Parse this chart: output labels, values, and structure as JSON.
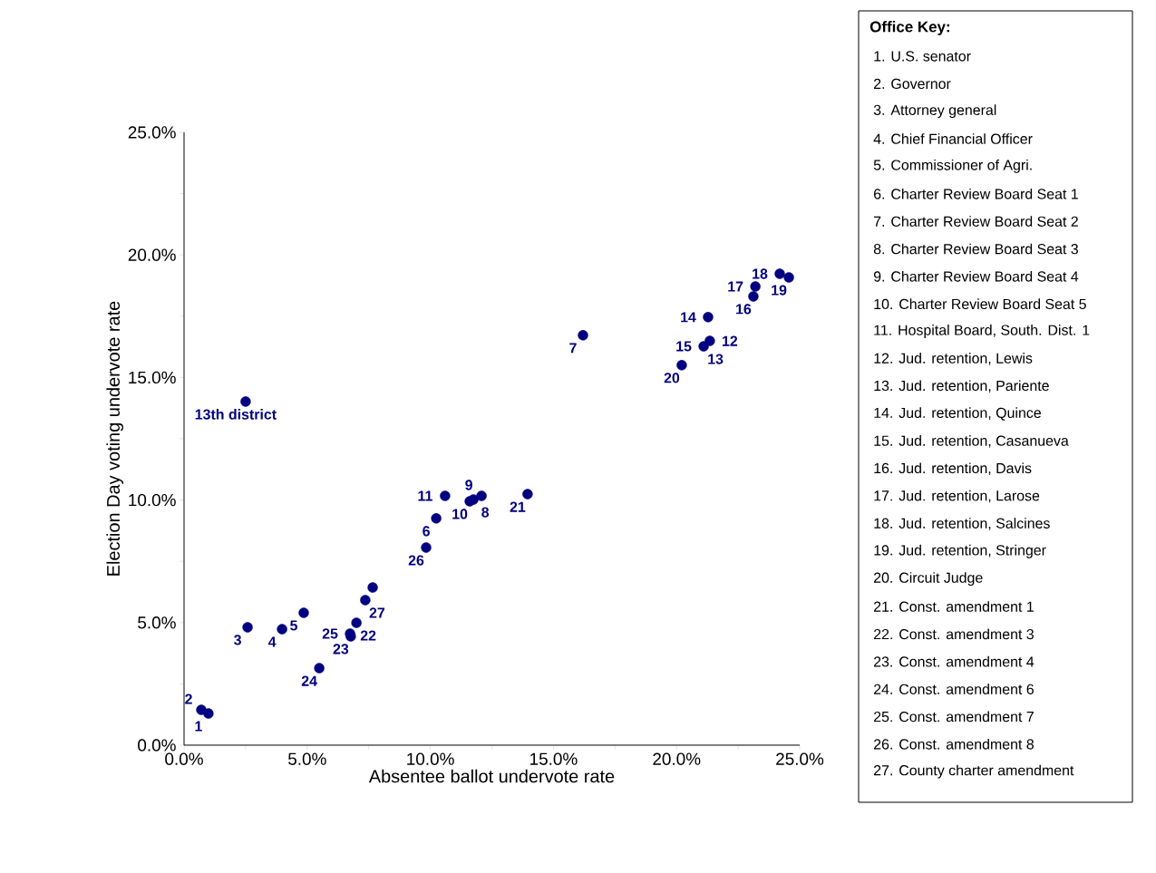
{
  "chart_data": {
    "type": "scatter",
    "xlabel": "Absentee ballot undervote rate",
    "ylabel": "Election Day voting undervote rate",
    "x": [
      0.99,
      0.7,
      2.58,
      3.98,
      4.86,
      5.49,
      6.74,
      6.77,
      7.0,
      7.36,
      7.66,
      9.83,
      10.24,
      10.6,
      11.6,
      11.75,
      12.08,
      13.95,
      16.2,
      20.21,
      21.1,
      21.35,
      21.28,
      23.12,
      23.2,
      24.19,
      24.56,
      2.5
    ],
    "values": [
      1.29,
      1.44,
      4.81,
      4.73,
      5.4,
      3.14,
      4.55,
      4.44,
      4.99,
      5.92,
      6.43,
      8.06,
      9.25,
      10.17,
      9.95,
      10.02,
      10.17,
      10.24,
      16.72,
      15.5,
      16.27,
      16.49,
      17.46,
      18.31,
      18.71,
      19.23,
      19.08,
      14.02
    ],
    "color": "#000080",
    "marker": "circle",
    "xlim": [
      0,
      25
    ],
    "ylim": [
      0,
      25
    ],
    "xticks": [
      {
        "value": 0,
        "label": "0.0%"
      },
      {
        "value": 2.5,
        "label": null
      },
      {
        "value": 5,
        "label": "5.0%"
      },
      {
        "value": 7.5,
        "label": null
      },
      {
        "value": 10,
        "label": "10.0%"
      },
      {
        "value": 12.5,
        "label": null
      },
      {
        "value": 15,
        "label": "15.0%"
      },
      {
        "value": 17.5,
        "label": null
      },
      {
        "value": 20,
        "label": "20.0%"
      },
      {
        "value": 22.5,
        "label": null
      },
      {
        "value": 25,
        "label": "25.0%"
      }
    ],
    "yticks": [
      {
        "value": 0,
        "label": "0.0%"
      },
      {
        "value": 2.5,
        "label": null
      },
      {
        "value": 5,
        "label": "5.0%"
      },
      {
        "value": 7.5,
        "label": null
      },
      {
        "value": 10,
        "label": "10.0%"
      },
      {
        "value": 12.5,
        "label": null
      },
      {
        "value": 15,
        "label": "15.0%"
      },
      {
        "value": 17.5,
        "label": null
      },
      {
        "value": 20,
        "label": "20.0%"
      },
      {
        "value": 22.5,
        "label": null
      },
      {
        "value": 25,
        "label": "25.0%"
      }
    ],
    "annotations": [
      {
        "text": "1",
        "x": 0.99,
        "y": 1.29
      },
      {
        "text": "2",
        "x": 0.7,
        "y": 1.44
      },
      {
        "text": "3",
        "x": 2.58,
        "y": 4.81
      },
      {
        "text": "4",
        "x": 3.98,
        "y": 4.73
      },
      {
        "text": "5",
        "x": 4.86,
        "y": 5.4
      },
      {
        "text": "24",
        "x": 5.49,
        "y": 3.14
      },
      {
        "text": "25",
        "x": 6.74,
        "y": 4.55
      },
      {
        "text": "23",
        "x": 6.77,
        "y": 4.44
      },
      {
        "text": "22",
        "x": 7.0,
        "y": 4.99
      },
      {
        "text": "27",
        "x": 7.36,
        "y": 5.92
      },
      {
        "text": "26",
        "x": 9.83,
        "y": 8.06
      },
      {
        "text": "6",
        "x": 10.24,
        "y": 9.25
      },
      {
        "text": "11",
        "x": 10.6,
        "y": 10.17
      },
      {
        "text": "10",
        "x": 11.6,
        "y": 9.95
      },
      {
        "text": "8",
        "x": 11.75,
        "y": 10.02
      },
      {
        "text": "9",
        "x": 12.08,
        "y": 10.17
      },
      {
        "text": "21",
        "x": 13.95,
        "y": 10.24
      },
      {
        "text": "7",
        "x": 16.2,
        "y": 16.72
      },
      {
        "text": "20",
        "x": 20.21,
        "y": 15.5
      },
      {
        "text": "13",
        "x": 21.1,
        "y": 16.27
      },
      {
        "text": "15",
        "x": 21.1,
        "y": 16.27
      },
      {
        "text": "12",
        "x": 21.35,
        "y": 16.49
      },
      {
        "text": "14",
        "x": 21.28,
        "y": 17.46
      },
      {
        "text": "16",
        "x": 23.12,
        "y": 18.31
      },
      {
        "text": "17",
        "x": 23.2,
        "y": 18.71
      },
      {
        "text": "18",
        "x": 24.19,
        "y": 19.23
      },
      {
        "text": "19",
        "x": 24.56,
        "y": 19.08
      },
      {
        "text": "13th district",
        "x": 2.5,
        "y": 14.02
      },
      "Office Key:",
      "1.  U.S. senator",
      "2.  Governor",
      "3.  Attorney general",
      "4.  Chief Financial Officer",
      "5.  Commissioner of Agri.",
      "6.  Charter Review Board Seat 1",
      "7.  Charter Review Board Seat 2",
      "8.  Charter Review Board Seat 3",
      "9.  Charter Review Board Seat 4",
      "10. Charter Review Board Seat 5",
      "11. Hospital Board, South. Dist. 1",
      "12. Jud. retention, Lewis",
      "13. Jud. retention, Pariente",
      "14. Jud. retention, Quince",
      "15. Jud. retention, Casanueva",
      "16. Jud. retention, Davis",
      "17. Jud. retention, Larose",
      "18. Jud. retention, Salcines",
      "19. Jud. retention, Stringer",
      "20. Circuit Judge",
      "21. Const. amendment 1",
      "22. Const. amendment 3",
      "23. Const. amendment 4",
      "24. Const. amendment 6",
      "25. Const. amendment 7",
      "26. Const. amendment 8",
      "27. County charter amendment"
    ]
  }
}
